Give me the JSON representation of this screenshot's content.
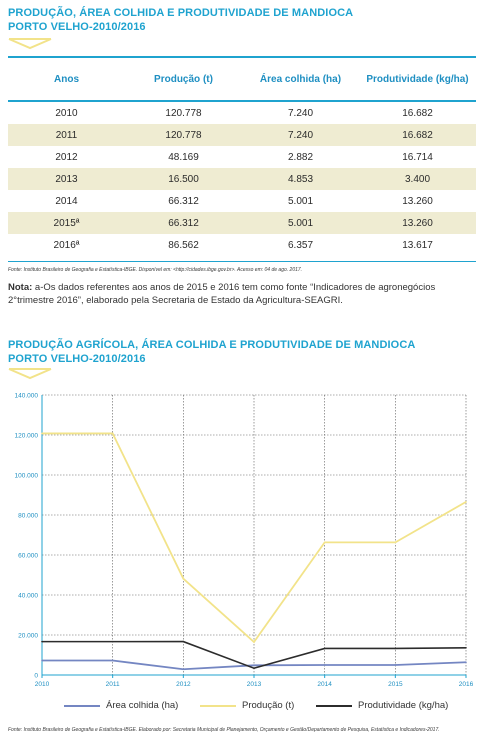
{
  "table_section": {
    "title_line1": "PRODUÇÃO, ÁREA COLHIDA E PRODUTIVIDADE DE MANDIOCA",
    "title_line2": "PORTO VELHO-2010/2016",
    "headers": [
      "Anos",
      "Produção (t)",
      "Área colhida (ha)",
      "Produtividade (kg/ha)"
    ],
    "rows": [
      [
        "2010",
        "120.778",
        "7.240",
        "16.682"
      ],
      [
        "2011",
        "120.778",
        "7.240",
        "16.682"
      ],
      [
        "2012",
        "48.169",
        "2.882",
        "16.714"
      ],
      [
        "2013",
        "16.500",
        "4.853",
        "3.400"
      ],
      [
        "2014",
        "66.312",
        "5.001",
        "13.260"
      ],
      [
        "2015ª",
        "66.312",
        "5.001",
        "13.260"
      ],
      [
        "2016ª",
        "86.562",
        "6.357",
        "13.617"
      ]
    ],
    "source": "Fonte: Instituto Brasileiro de Geografia e Estatística-IBGE. Disponível em: <http://cidades.ibge.gov.br>. Acesso em: 04 de ago. 2017.",
    "note_label": "Nota:",
    "note_text": "a-Os dados referentes aos anos de 2015 e 2016 tem como fonte “Indicadores de agronegócios 2°trimestre 2016”, elaborado pela Secretaria de Estado da Agricultura-SEAGRI."
  },
  "chart_section": {
    "title_line1": "PRODUÇÃO AGRÍCOLA, ÁREA COLHIDA E PRODUTIVIDADE DE MANDIOCA",
    "title_line2": "PORTO VELHO-2010/2016",
    "source": "Fonte: Instituto Brasileiro de Geografia e Estatística-IBGE. Elaborado por: Secretaria Municipal de Planejamento, Orçamento e Gestão/Departamento de Pesquisa, Estatística e Indicadores-2017."
  },
  "colors": {
    "accent": "#1fa3cf",
    "area": "#7486c2",
    "producao": "#f2e38a",
    "produtividade": "#2c2c2c",
    "axis_text": "#1e8fc2",
    "row_stripe": "#efecd2"
  },
  "chart_data": {
    "type": "line",
    "x": [
      2010,
      2011,
      2012,
      2013,
      2014,
      2015,
      2016
    ],
    "xlabel": "",
    "ylabel": "",
    "ylim": [
      0,
      140000
    ],
    "y_ticks": [
      "0",
      "20.000",
      "40.000",
      "60.000",
      "80.000",
      "100.000",
      "120.000",
      "140.000"
    ],
    "x_ticks": [
      "2010",
      "2011",
      "2012",
      "2013",
      "2014",
      "2015",
      "2016"
    ],
    "grid": true,
    "legend_position": "bottom",
    "series": [
      {
        "name": "Área colhida (ha)",
        "values": [
          7240,
          7240,
          2882,
          4853,
          5001,
          5001,
          6357
        ],
        "color": "#7486c2"
      },
      {
        "name": "Produção (t)",
        "values": [
          120778,
          120778,
          48169,
          16500,
          66312,
          66312,
          86562
        ],
        "color": "#f2e38a"
      },
      {
        "name": "Produtividade (kg/ha)",
        "values": [
          16682,
          16682,
          16714,
          3400,
          13260,
          13260,
          13617
        ],
        "color": "#2c2c2c"
      }
    ]
  }
}
